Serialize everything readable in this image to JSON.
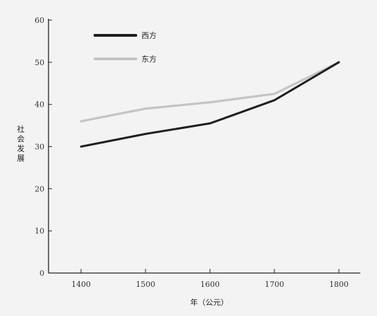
{
  "chart_data": {
    "type": "line",
    "x": [
      1400,
      1500,
      1600,
      1700,
      1800
    ],
    "xlabel": "年（公元）",
    "ylabel": "社会发展",
    "ylim": [
      0,
      60
    ],
    "yticks": [
      0,
      10,
      20,
      30,
      40,
      50,
      60
    ],
    "grid": false,
    "legend_position": "top-left",
    "series": [
      {
        "name": "西方",
        "values": [
          30,
          33,
          35.5,
          41,
          50
        ],
        "color": "#1f1f1f"
      },
      {
        "name": "东方",
        "values": [
          36,
          39,
          40.5,
          42.5,
          50
        ],
        "color": "#c4c4c4"
      }
    ]
  }
}
